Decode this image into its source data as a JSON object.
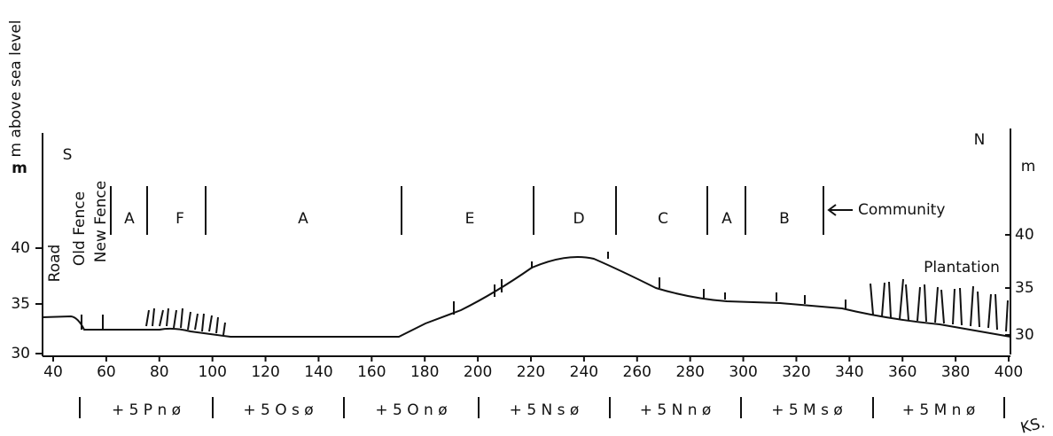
{
  "header": {
    "axis_title": "m above sea level",
    "south": "S",
    "north": "N",
    "left_unit": "m",
    "right_unit": "m"
  },
  "left_ticks": [
    "40",
    "35",
    "30"
  ],
  "right_ticks": [
    "40",
    "35",
    "30"
  ],
  "x_ticks": [
    "40",
    "60",
    "80",
    "100",
    "120",
    "140",
    "160",
    "180",
    "200",
    "220",
    "240",
    "260",
    "280",
    "300",
    "320",
    "340",
    "360",
    "380",
    "400"
  ],
  "labels": {
    "road": "Road",
    "old_fence": "Old Fence",
    "new_fence": "New Fence",
    "plantation": "Plantation",
    "community": "Community",
    "initials": "KS."
  },
  "zones": [
    "A",
    "F",
    "A",
    "E",
    "D",
    "C",
    "A",
    "B"
  ],
  "codes": [
    "+ 5 P n ø",
    "+ 5 O s ø",
    "+ 5 O n ø",
    "+ 5 N s ø",
    "+ 5 N n ø",
    "+ 5 M s ø",
    "+ 5 M n ø"
  ]
}
